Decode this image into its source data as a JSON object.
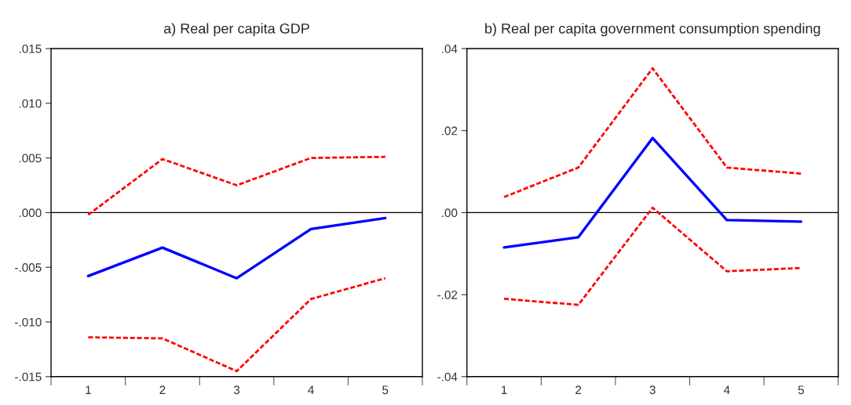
{
  "chart_data": [
    {
      "type": "line",
      "title": "a) Real per capita GDP",
      "categories": [
        "1",
        "2",
        "3",
        "4",
        "5"
      ],
      "series": [
        {
          "color": "#0000ff",
          "line_style": "solid",
          "values": [
            -0.0058,
            -0.0032,
            -0.006,
            -0.0015,
            -0.0005
          ]
        },
        {
          "color": "#ff0000",
          "line_style": "dashed",
          "values": [
            -0.0002,
            0.0049,
            0.0025,
            0.005,
            0.0051
          ]
        },
        {
          "color": "#ff0000",
          "line_style": "dashed",
          "values": [
            -0.0114,
            -0.0115,
            -0.0145,
            -0.0079,
            -0.006
          ]
        }
      ],
      "ylim": [
        -0.015,
        0.015
      ],
      "yticks": [
        {
          "value": -0.015,
          "label": "-.015"
        },
        {
          "value": -0.01,
          "label": "-.010"
        },
        {
          "value": -0.005,
          "label": "-.005"
        },
        {
          "value": 0,
          "label": ".000"
        },
        {
          "value": 0.005,
          "label": ".005"
        },
        {
          "value": 0.01,
          "label": ".010"
        },
        {
          "value": 0.015,
          "label": ".015"
        }
      ],
      "ref_lines": [
        {
          "axis": "y",
          "value": 0,
          "color": "#000000"
        }
      ],
      "grid": false,
      "legend": false
    },
    {
      "type": "line",
      "title": "b) Real per capita government consumption spending",
      "categories": [
        "1",
        "2",
        "3",
        "4",
        "5"
      ],
      "series": [
        {
          "color": "#0000ff",
          "line_style": "solid",
          "values": [
            -0.0085,
            -0.006,
            0.0182,
            -0.0018,
            -0.0022
          ]
        },
        {
          "color": "#ff0000",
          "line_style": "dashed",
          "values": [
            0.0038,
            0.011,
            0.0352,
            0.011,
            0.0095
          ]
        },
        {
          "color": "#ff0000",
          "line_style": "dashed",
          "values": [
            -0.021,
            -0.0225,
            0.0012,
            -0.0143,
            -0.0135
          ]
        }
      ],
      "ylim": [
        -0.04,
        0.04
      ],
      "yticks": [
        {
          "value": -0.04,
          "label": "-.04"
        },
        {
          "value": -0.02,
          "label": "-.02"
        },
        {
          "value": 0,
          "label": ".00"
        },
        {
          "value": 0.02,
          "label": ".02"
        },
        {
          "value": 0.04,
          "label": ".04"
        }
      ],
      "ref_lines": [
        {
          "axis": "y",
          "value": 0,
          "color": "#000000"
        }
      ],
      "grid": false,
      "legend": false
    }
  ]
}
